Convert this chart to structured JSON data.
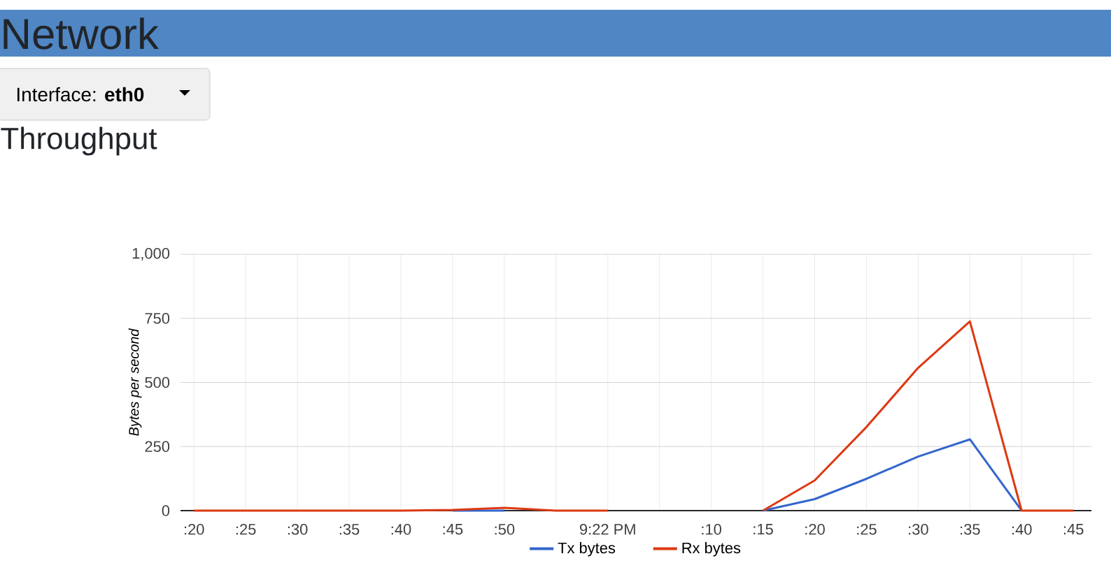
{
  "chart_data": {
    "type": "line",
    "title": "Throughput",
    "ylabel": "Bytes per second",
    "annotations": [
      "Network",
      "Interface: **eth0**"
    ],
    "categories": [
      ":20",
      ":25",
      ":30",
      ":35",
      ":40",
      ":45",
      ":50",
      null,
      "9:22 PM",
      null,
      ":10",
      ":15",
      ":20",
      ":25",
      ":30",
      ":35",
      ":40",
      ":45"
    ],
    "ylim": [
      0,
      1000
    ],
    "yticks": [
      0,
      250,
      500,
      750,
      {
        "value": 1000,
        "label": "1,000"
      }
    ],
    "grid": true,
    "legend": "bottom",
    "series": [
      {
        "name": "Tx bytes",
        "color": "#3366cc",
        "values": [
          null,
          null,
          null,
          null,
          null,
          0,
          0,
          null,
          null,
          null,
          null,
          0,
          45,
          124,
          211,
          278,
          0,
          null
        ]
      },
      {
        "name": "Rx bytes",
        "color": "#dc3912",
        "values": [
          0,
          0,
          0,
          0,
          0,
          3,
          11,
          0,
          0,
          null,
          null,
          0,
          118,
          326,
          557,
          738,
          0,
          0
        ]
      }
    ]
  }
}
